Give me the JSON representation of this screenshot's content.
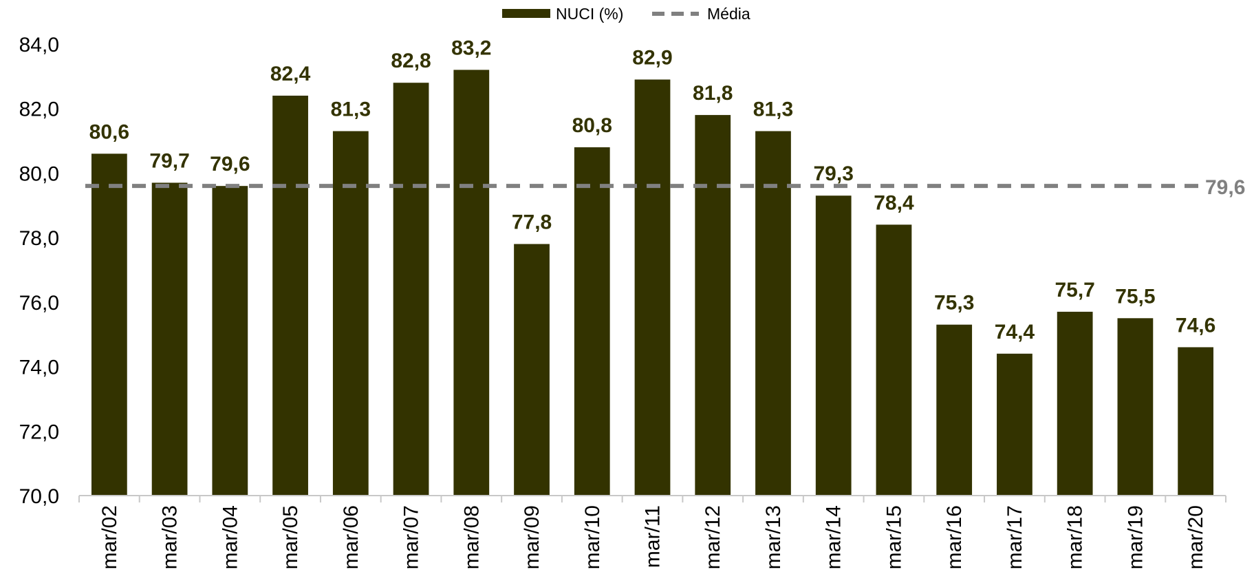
{
  "chart_data": {
    "type": "bar",
    "categories": [
      "mar/02",
      "mar/03",
      "mar/04",
      "mar/05",
      "mar/06",
      "mar/07",
      "mar/08",
      "mar/09",
      "mar/10",
      "mar/11",
      "mar/12",
      "mar/13",
      "mar/14",
      "mar/15",
      "mar/16",
      "mar/17",
      "mar/18",
      "mar/19",
      "mar/20"
    ],
    "series": [
      {
        "name": "NUCI (%)",
        "values": [
          80.6,
          79.7,
          79.6,
          82.4,
          81.3,
          82.8,
          83.2,
          77.8,
          80.8,
          82.9,
          81.8,
          81.3,
          79.3,
          78.4,
          75.3,
          74.4,
          75.7,
          75.5,
          74.6
        ],
        "data_labels": [
          "80,6",
          "79,7",
          "79,6",
          "82,4",
          "81,3",
          "82,8",
          "83,2",
          "77,8",
          "80,8",
          "82,9",
          "81,8",
          "81,3",
          "79,3",
          "78,4",
          "75,3",
          "74,4",
          "75,7",
          "75,5",
          "74,6"
        ],
        "color": "#333300"
      },
      {
        "name": "Média",
        "type": "line",
        "style": "dashed",
        "value": 79.6,
        "label": "79,6",
        "color": "#808080"
      }
    ],
    "ylim": [
      70,
      84
    ],
    "yticks": [
      70,
      72,
      74,
      76,
      78,
      80,
      82,
      84
    ],
    "ytick_labels": [
      "70,0",
      "72,0",
      "74,0",
      "76,0",
      "78,0",
      "80,0",
      "82,0",
      "84,0"
    ],
    "xlabel": "",
    "ylabel": "",
    "grid": false,
    "legend": {
      "position": "top-center",
      "entries": [
        "NUCI (%)",
        "Média"
      ]
    }
  }
}
